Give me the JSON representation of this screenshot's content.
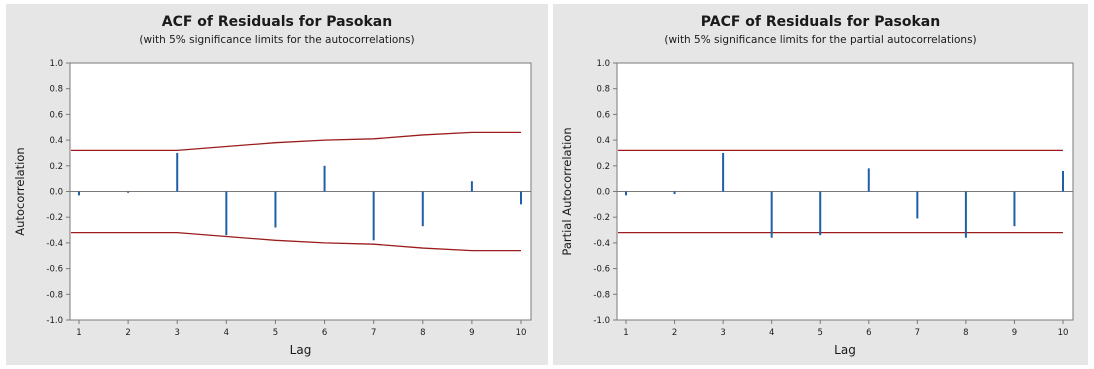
{
  "colors": {
    "panel_bg": "#e6e6e6",
    "plot_bg": "#ffffff",
    "bar": "#1f5fa8",
    "limit": "#9b1c1c",
    "axis": "#7a7a7a",
    "text": "#1a1a1a"
  },
  "chart_data": [
    {
      "type": "bar",
      "title": "ACF of Residuals for Pasokan",
      "subtitle": "(with 5% significance limits for the autocorrelations)",
      "xlabel": "Lag",
      "ylabel": "Autocorrelation",
      "ylim": [
        -1.0,
        1.0
      ],
      "yticks": [
        "-1.0",
        "-0.8",
        "-0.6",
        "-0.4",
        "-0.2",
        "0.0",
        "0.2",
        "0.4",
        "0.6",
        "0.8",
        "1.0"
      ],
      "x": [
        1,
        2,
        3,
        4,
        5,
        6,
        7,
        8,
        9,
        10
      ],
      "values": [
        -0.03,
        -0.01,
        0.3,
        -0.34,
        -0.28,
        0.2,
        -0.38,
        -0.27,
        0.08,
        -0.1
      ],
      "upper_limit": [
        0.32,
        0.32,
        0.32,
        0.35,
        0.38,
        0.4,
        0.41,
        0.44,
        0.46,
        0.46
      ],
      "lower_limit": [
        -0.32,
        -0.32,
        -0.32,
        -0.35,
        -0.38,
        -0.4,
        -0.41,
        -0.44,
        -0.46,
        -0.46
      ]
    },
    {
      "type": "bar",
      "title": "PACF of Residuals for Pasokan",
      "subtitle": "(with 5% significance limits for the partial autocorrelations)",
      "xlabel": "Lag",
      "ylabel": "Partial Autocorrelation",
      "ylim": [
        -1.0,
        1.0
      ],
      "yticks": [
        "-1.0",
        "-0.8",
        "-0.6",
        "-0.4",
        "-0.2",
        "0.0",
        "0.2",
        "0.4",
        "0.6",
        "0.8",
        "1.0"
      ],
      "x": [
        1,
        2,
        3,
        4,
        5,
        6,
        7,
        8,
        9,
        10
      ],
      "values": [
        -0.03,
        -0.02,
        0.3,
        -0.36,
        -0.34,
        0.18,
        -0.21,
        -0.36,
        -0.27,
        0.16
      ],
      "upper_limit": [
        0.32,
        0.32,
        0.32,
        0.32,
        0.32,
        0.32,
        0.32,
        0.32,
        0.32,
        0.32
      ],
      "lower_limit": [
        -0.32,
        -0.32,
        -0.32,
        -0.32,
        -0.32,
        -0.32,
        -0.32,
        -0.32,
        -0.32,
        -0.32
      ]
    }
  ]
}
